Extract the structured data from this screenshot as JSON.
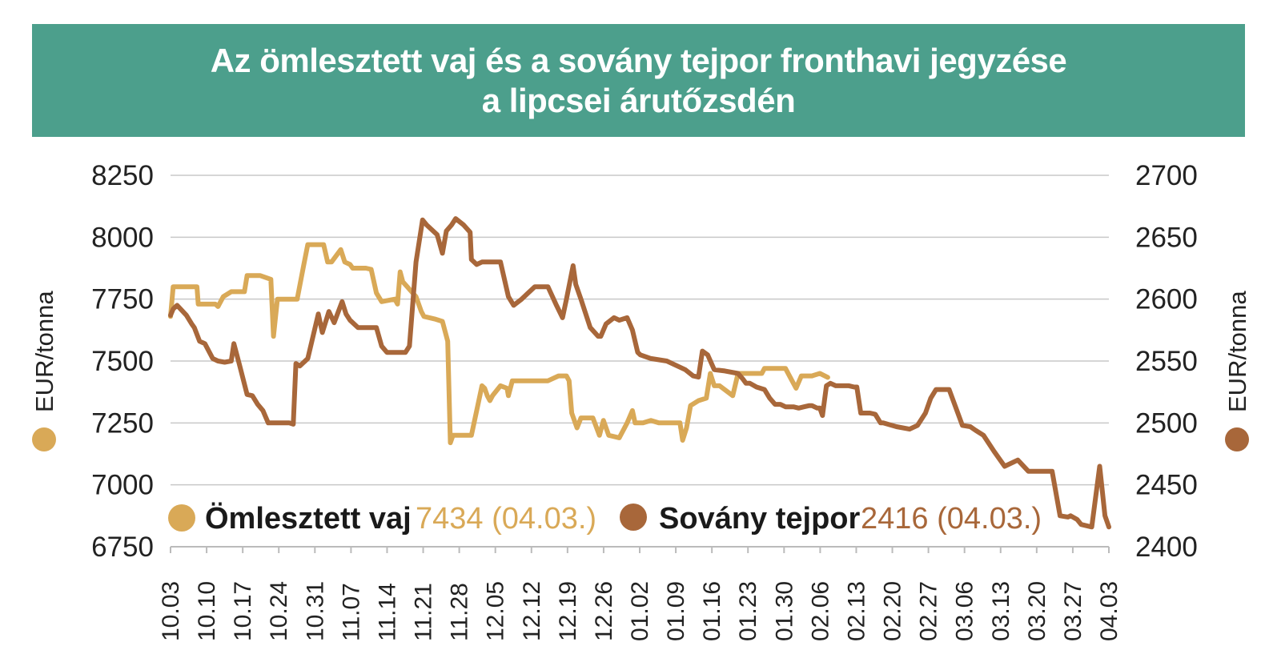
{
  "title_line1": "Az ömlesztett vaj és a sovány tejpor fronthavi jegyzése",
  "title_line2": "a lipcsei árutőzsdén",
  "colors": {
    "header_bg": "#4c9f8c",
    "butter": "#d9a957",
    "smp": "#a8673a",
    "grid": "#c8c8c8"
  },
  "chart_data": {
    "type": "line",
    "title": "Az ömlesztett vaj és a sovány tejpor fronthavi jegyzése a lipcsei árutőzsdén",
    "y_left": {
      "label": "EUR/tonna",
      "min": 6750,
      "max": 8250,
      "ticks": [
        "8250",
        "8000",
        "7750",
        "7500",
        "7250",
        "7000",
        "6750"
      ]
    },
    "y_right": {
      "label": "EUR/tonna",
      "min": 2400,
      "max": 2700,
      "ticks": [
        "2700",
        "2650",
        "2600",
        "2550",
        "2500",
        "2450",
        "2400"
      ]
    },
    "x_ticks": [
      "10.03",
      "10.10",
      "10.17",
      "10.24",
      "10.31",
      "11.07",
      "11.14",
      "11.21",
      "11.28",
      "12.05",
      "12.12",
      "12.19",
      "12.26",
      "01.02",
      "01.09",
      "01.16",
      "01.23",
      "01.30",
      "02.06",
      "02.13",
      "02.20",
      "02.27",
      "03.06",
      "03.13",
      "03.20",
      "03.27",
      "04.03"
    ],
    "grid": true,
    "legend": [
      {
        "name": "Ömlesztett vaj",
        "value": "7434 (04.03.)"
      },
      {
        "name": "Sovány tejpor",
        "value": "2416 (04.03.)"
      }
    ],
    "series": [
      {
        "name": "Ömlesztett vaj",
        "axis": "left",
        "color": "#d9a957",
        "points": [
          [
            0,
            7680
          ],
          [
            0.1,
            7800
          ],
          [
            0.6,
            7800
          ],
          [
            1,
            7800
          ],
          [
            1.05,
            7730
          ],
          [
            1.6,
            7730
          ],
          [
            1.7,
            7730
          ],
          [
            1.8,
            7720
          ],
          [
            2,
            7760
          ],
          [
            2.3,
            7780
          ],
          [
            2.8,
            7780
          ],
          [
            2.9,
            7845
          ],
          [
            3.4,
            7845
          ],
          [
            3.8,
            7830
          ],
          [
            3.9,
            7600
          ],
          [
            4.05,
            7750
          ],
          [
            4.8,
            7750
          ],
          [
            5.05,
            7890
          ],
          [
            5.2,
            7970
          ],
          [
            5.8,
            7970
          ],
          [
            5.95,
            7900
          ],
          [
            6.1,
            7900
          ],
          [
            6.45,
            7950
          ],
          [
            6.6,
            7900
          ],
          [
            6.8,
            7890
          ],
          [
            6.9,
            7875
          ],
          [
            7.4,
            7875
          ],
          [
            7.6,
            7870
          ],
          [
            7.8,
            7775
          ],
          [
            8,
            7740
          ],
          [
            8.5,
            7750
          ],
          [
            8.6,
            7730
          ],
          [
            8.7,
            7860
          ],
          [
            8.8,
            7820
          ],
          [
            9.3,
            7760
          ],
          [
            9.5,
            7700
          ],
          [
            9.6,
            7680
          ],
          [
            10,
            7670
          ],
          [
            10.3,
            7660
          ],
          [
            10.5,
            7580
          ],
          [
            10.6,
            7170
          ],
          [
            10.7,
            7200
          ],
          [
            11.4,
            7200
          ],
          [
            11.6,
            7300
          ],
          [
            11.8,
            7400
          ],
          [
            11.9,
            7390
          ],
          [
            12,
            7360
          ],
          [
            12.1,
            7340
          ],
          [
            12.2,
            7360
          ],
          [
            12.5,
            7400
          ],
          [
            12.75,
            7390
          ],
          [
            12.8,
            7360
          ],
          [
            12.95,
            7420
          ],
          [
            14.3,
            7420
          ],
          [
            14.7,
            7440
          ],
          [
            15,
            7440
          ],
          [
            15.1,
            7420
          ],
          [
            15.2,
            7290
          ],
          [
            15.4,
            7230
          ],
          [
            15.55,
            7270
          ],
          [
            16,
            7270
          ],
          [
            16.25,
            7200
          ],
          [
            16.4,
            7260
          ],
          [
            16.6,
            7200
          ],
          [
            17,
            7190
          ],
          [
            17.3,
            7250
          ],
          [
            17.5,
            7300
          ],
          [
            17.6,
            7250
          ],
          [
            17.9,
            7250
          ],
          [
            18.2,
            7260
          ],
          [
            18.5,
            7250
          ],
          [
            19.3,
            7250
          ],
          [
            19.4,
            7180
          ],
          [
            19.55,
            7230
          ],
          [
            19.7,
            7320
          ],
          [
            20,
            7340
          ],
          [
            20.3,
            7350
          ],
          [
            20.45,
            7450
          ],
          [
            20.6,
            7400
          ],
          [
            20.8,
            7400
          ],
          [
            21.3,
            7360
          ],
          [
            21.5,
            7450
          ],
          [
            22.4,
            7450
          ],
          [
            22.5,
            7470
          ],
          [
            23.3,
            7470
          ],
          [
            23.5,
            7430
          ],
          [
            23.7,
            7390
          ],
          [
            23.9,
            7440
          ],
          [
            24.3,
            7440
          ],
          [
            24.6,
            7450
          ],
          [
            24.9,
            7434
          ]
        ]
      },
      {
        "name": "Sovány tejpor",
        "axis": "right",
        "color": "#a8673a",
        "points": [
          [
            0,
            2587
          ],
          [
            0.1,
            2592
          ],
          [
            0.25,
            2595
          ],
          [
            0.6,
            2587
          ],
          [
            0.8,
            2580
          ],
          [
            0.9,
            2577
          ],
          [
            1.1,
            2566
          ],
          [
            1.3,
            2564
          ],
          [
            1.6,
            2552
          ],
          [
            1.8,
            2550
          ],
          [
            2.05,
            2549
          ],
          [
            2.3,
            2550
          ],
          [
            2.4,
            2564
          ],
          [
            2.6,
            2548
          ],
          [
            2.9,
            2523
          ],
          [
            3.1,
            2522
          ],
          [
            3.3,
            2515
          ],
          [
            3.5,
            2510
          ],
          [
            3.7,
            2500
          ],
          [
            4.1,
            2500
          ],
          [
            4.2,
            2500
          ],
          [
            4.5,
            2500
          ],
          [
            4.65,
            2499
          ],
          [
            4.75,
            2548
          ],
          [
            4.9,
            2546
          ],
          [
            5.2,
            2552
          ],
          [
            5.4,
            2570
          ],
          [
            5.6,
            2588
          ],
          [
            5.75,
            2573
          ],
          [
            6,
            2590
          ],
          [
            6.2,
            2581
          ],
          [
            6.5,
            2598
          ],
          [
            6.65,
            2588
          ],
          [
            6.8,
            2583
          ],
          [
            7.1,
            2577
          ],
          [
            7.5,
            2577
          ],
          [
            7.8,
            2577
          ],
          [
            8,
            2562
          ],
          [
            8.2,
            2557
          ],
          [
            8.6,
            2557
          ],
          [
            8.9,
            2557
          ],
          [
            9.05,
            2562
          ],
          [
            9.3,
            2630
          ],
          [
            9.55,
            2664
          ],
          [
            9.7,
            2660
          ],
          [
            10.1,
            2652
          ],
          [
            10.3,
            2637
          ],
          [
            10.45,
            2655
          ],
          [
            10.65,
            2660
          ],
          [
            10.8,
            2665
          ],
          [
            11.1,
            2660
          ],
          [
            11.35,
            2654
          ],
          [
            11.4,
            2632
          ],
          [
            11.6,
            2628
          ],
          [
            11.8,
            2630
          ],
          [
            12.5,
            2630
          ],
          [
            12.8,
            2602
          ],
          [
            13,
            2595
          ],
          [
            13.3,
            2600
          ],
          [
            13.55,
            2605
          ],
          [
            13.8,
            2610
          ],
          [
            14.3,
            2610
          ],
          [
            14.6,
            2596
          ],
          [
            14.85,
            2585
          ],
          [
            15,
            2600
          ],
          [
            15.25,
            2627
          ],
          [
            15.35,
            2612
          ],
          [
            15.55,
            2600
          ],
          [
            15.7,
            2590
          ],
          [
            15.9,
            2577
          ],
          [
            16.2,
            2570
          ],
          [
            16.3,
            2570
          ],
          [
            16.5,
            2580
          ],
          [
            16.8,
            2585
          ],
          [
            17,
            2583
          ],
          [
            17.3,
            2585
          ],
          [
            17.5,
            2575
          ],
          [
            17.7,
            2557
          ],
          [
            17.8,
            2555
          ],
          [
            18.2,
            2552
          ],
          [
            18.8,
            2550
          ],
          [
            19.2,
            2546
          ],
          [
            19.5,
            2543
          ],
          [
            19.8,
            2538
          ],
          [
            20,
            2537
          ],
          [
            20.15,
            2558
          ],
          [
            20.35,
            2555
          ],
          [
            20.6,
            2543
          ],
          [
            21,
            2542
          ],
          [
            21.5,
            2540
          ],
          [
            21.7,
            2535
          ],
          [
            21.8,
            2532
          ],
          [
            21.95,
            2532
          ],
          [
            22.2,
            2529
          ],
          [
            22.5,
            2527
          ],
          [
            22.7,
            2520
          ],
          [
            22.9,
            2515
          ],
          [
            23.1,
            2515
          ],
          [
            23.3,
            2513
          ],
          [
            23.6,
            2513
          ],
          [
            23.8,
            2512
          ],
          [
            24,
            2513
          ],
          [
            24.2,
            2514
          ],
          [
            24.3,
            2514
          ],
          [
            24.5,
            2512
          ],
          [
            24.6,
            2512
          ],
          [
            24.7,
            2506
          ],
          [
            24.85,
            2530
          ],
          [
            25,
            2532
          ],
          [
            25.2,
            2530
          ],
          [
            25.45,
            2530
          ],
          [
            25.7,
            2530
          ],
          [
            25.9,
            2529
          ],
          [
            26,
            2529
          ],
          [
            26.15,
            2508
          ],
          [
            26.4,
            2508
          ],
          [
            26.5,
            2508
          ],
          [
            26.7,
            2507
          ],
          [
            26.9,
            2500
          ],
          [
            27,
            2500
          ],
          [
            27.5,
            2497
          ],
          [
            28,
            2495
          ],
          [
            28.3,
            2498
          ],
          [
            28.6,
            2508
          ],
          [
            28.8,
            2520
          ],
          [
            29,
            2527
          ],
          [
            29.5,
            2527
          ],
          [
            30,
            2498
          ],
          [
            30.3,
            2497
          ],
          [
            30.5,
            2494
          ],
          [
            30.8,
            2490
          ],
          [
            31.2,
            2477
          ],
          [
            31.6,
            2465
          ],
          [
            32.1,
            2470
          ],
          [
            32.5,
            2461
          ],
          [
            33.1,
            2461
          ],
          [
            33.4,
            2461
          ],
          [
            33.7,
            2425
          ],
          [
            34,
            2424
          ],
          [
            34.1,
            2425
          ],
          [
            34.35,
            2422
          ],
          [
            34.5,
            2418
          ],
          [
            34.9,
            2416
          ],
          [
            35.2,
            2465
          ],
          [
            35.4,
            2425
          ],
          [
            35.55,
            2416
          ]
        ]
      }
    ]
  }
}
